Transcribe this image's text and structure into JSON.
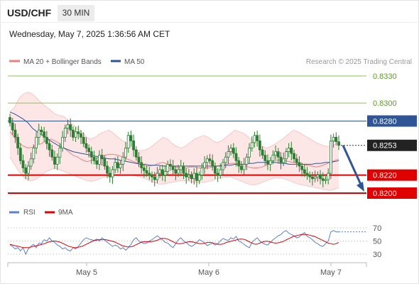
{
  "header": {
    "pair": "USD/CHF",
    "timeframe": "30 MIN",
    "datetime": "Wednesday, May 7, 2025 1:36:56 AM CET"
  },
  "legend": {
    "ma20_bb": "MA 20 + Bollinger Bands",
    "ma50": "MA 50",
    "rsi": "RSI",
    "ma9": "9MA"
  },
  "copyright": "Research © 2025 Trading Central",
  "colors": {
    "candle": "#2e7d32",
    "ma20": "#f08080",
    "ma50": "#2f5597",
    "band_fill": "#fde6e6",
    "green_level": "#8bc34a",
    "blue_level": "#2f5597",
    "red_level": "#e00000",
    "arrow": "#2f5597",
    "rsi": "#5b7fd6",
    "rsi_ma9": "#e00000"
  },
  "chart_data": [
    {
      "type": "candlestick",
      "title": "USD/CHF 30 MIN",
      "x_ticks": [
        "May 5",
        "May 6",
        "May 7"
      ],
      "ylim": [
        0.819,
        0.834
      ],
      "levels": [
        {
          "value": 0.833,
          "label": "0.8330",
          "kind": "resistance"
        },
        {
          "value": 0.83,
          "label": "0.8300",
          "kind": "resistance"
        },
        {
          "value": 0.828,
          "label": "0.8280",
          "kind": "pivot"
        },
        {
          "value": 0.8253,
          "label": "0.8253",
          "kind": "last_price"
        },
        {
          "value": 0.822,
          "label": "0.8220",
          "kind": "support"
        },
        {
          "value": 0.82,
          "label": "0.8200",
          "kind": "support"
        }
      ],
      "candles_close": [
        0.8278,
        0.827,
        0.8262,
        0.825,
        0.8236,
        0.8228,
        0.8222,
        0.823,
        0.8238,
        0.825,
        0.8262,
        0.827,
        0.8268,
        0.8262,
        0.8255,
        0.8248,
        0.824,
        0.8232,
        0.824,
        0.825,
        0.8262,
        0.8272,
        0.8276,
        0.827,
        0.8262,
        0.8268,
        0.8266,
        0.8262,
        0.8255,
        0.825,
        0.8246,
        0.824,
        0.8236,
        0.8232,
        0.8242,
        0.8238,
        0.823,
        0.8222,
        0.8218,
        0.8226,
        0.8234,
        0.8228,
        0.8232,
        0.824,
        0.825,
        0.8264,
        0.8258,
        0.8248,
        0.824,
        0.8234,
        0.8228,
        0.8225,
        0.8222,
        0.822,
        0.8218,
        0.8215,
        0.8222,
        0.8226,
        0.822,
        0.8224,
        0.8232,
        0.823,
        0.8226,
        0.8222,
        0.8226,
        0.823,
        0.8222,
        0.8218,
        0.822,
        0.8216,
        0.8222,
        0.8214,
        0.822,
        0.8228,
        0.8234,
        0.8238,
        0.8236,
        0.823,
        0.8222,
        0.822,
        0.8226,
        0.8234,
        0.824,
        0.8246,
        0.825,
        0.8244,
        0.8236,
        0.823,
        0.8226,
        0.8232,
        0.824,
        0.825,
        0.8256,
        0.8264,
        0.8258,
        0.8248,
        0.8242,
        0.8236,
        0.8232,
        0.8236,
        0.8242,
        0.8246,
        0.824,
        0.8234,
        0.8238,
        0.8246,
        0.825,
        0.8244,
        0.8238,
        0.8234,
        0.823,
        0.8226,
        0.8222,
        0.822,
        0.8218,
        0.8216,
        0.8218,
        0.822,
        0.8216,
        0.8214,
        0.8215,
        0.8222,
        0.8258,
        0.8262,
        0.8257,
        0.8253
      ],
      "ma20": [
        0.8268,
        0.8262,
        0.8256,
        0.8252,
        0.825,
        0.8251,
        0.8253,
        0.8255,
        0.8258,
        0.826,
        0.8258,
        0.8255,
        0.825,
        0.8246,
        0.8242,
        0.824,
        0.8237,
        0.8235,
        0.8236,
        0.8238,
        0.824,
        0.8242,
        0.8243,
        0.8243,
        0.8242,
        0.824,
        0.8238,
        0.8236,
        0.8234,
        0.8232,
        0.823,
        0.823,
        0.8231,
        0.8233,
        0.8234,
        0.8232,
        0.823,
        0.8229,
        0.8228,
        0.8228,
        0.8229,
        0.8229,
        0.8228,
        0.8228,
        0.8228,
        0.8229,
        0.823,
        0.8231,
        0.8232,
        0.8233,
        0.8233,
        0.8232,
        0.8231,
        0.8229,
        0.8228,
        0.8228,
        0.8229,
        0.8231,
        0.8234,
        0.8236,
        0.8237,
        0.8236,
        0.8235,
        0.8234,
        0.8233,
        0.8232,
        0.8231,
        0.823,
        0.8229,
        0.823,
        0.8232,
        0.8234,
        0.8236,
        0.8238
      ],
      "ma50": [
        0.829,
        0.8288,
        0.8285,
        0.8282,
        0.8278,
        0.8272,
        0.8268,
        0.8265,
        0.8262,
        0.8258,
        0.8255,
        0.8252,
        0.825,
        0.8248,
        0.8246,
        0.8245,
        0.8244,
        0.8243,
        0.8242,
        0.8241,
        0.824,
        0.8239,
        0.8238,
        0.8238,
        0.8237,
        0.8236,
        0.8235,
        0.8234,
        0.8233,
        0.8232,
        0.8232,
        0.8231,
        0.8231,
        0.8231,
        0.823,
        0.823,
        0.823,
        0.823,
        0.823,
        0.823,
        0.823,
        0.823,
        0.823,
        0.823,
        0.823,
        0.823,
        0.823,
        0.823,
        0.8231,
        0.8231,
        0.8232,
        0.8232,
        0.8232,
        0.8233,
        0.8233,
        0.8234,
        0.8234,
        0.8234,
        0.8234,
        0.8234,
        0.8233,
        0.8233,
        0.8232,
        0.8232,
        0.8232,
        0.8232,
        0.8232,
        0.8232,
        0.8233,
        0.8233,
        0.8234,
        0.8234,
        0.8235,
        0.8236
      ],
      "bb_upper": [
        0.829,
        0.8295,
        0.8305,
        0.831,
        0.8312,
        0.831,
        0.8305,
        0.83,
        0.8296,
        0.8292,
        0.8288,
        0.8286,
        0.8285,
        0.828,
        0.8276,
        0.8272,
        0.8268,
        0.8262,
        0.826,
        0.8262,
        0.8266,
        0.8268,
        0.827,
        0.8266,
        0.8262,
        0.8258,
        0.8255,
        0.825,
        0.8248,
        0.8247,
        0.8248,
        0.825,
        0.8254,
        0.8258,
        0.8262,
        0.826,
        0.8255,
        0.8252,
        0.825,
        0.8252,
        0.8256,
        0.826,
        0.8262,
        0.8264,
        0.8262,
        0.8258,
        0.8256,
        0.8258,
        0.8262,
        0.8266,
        0.827,
        0.8268,
        0.8266,
        0.8262,
        0.8258,
        0.8255,
        0.8252,
        0.825,
        0.8252,
        0.8255,
        0.8258,
        0.8262,
        0.8266,
        0.827,
        0.8268,
        0.8265,
        0.8262,
        0.8259,
        0.8256,
        0.8254,
        0.8252,
        0.8252,
        0.8254,
        0.8256
      ],
      "bb_lower": [
        0.824,
        0.8232,
        0.8224,
        0.8218,
        0.8214,
        0.8214,
        0.8216,
        0.822,
        0.8224,
        0.8226,
        0.8228,
        0.8226,
        0.8224,
        0.8222,
        0.822,
        0.8218,
        0.8216,
        0.8214,
        0.8213,
        0.8214,
        0.8216,
        0.8218,
        0.8219,
        0.822,
        0.8221,
        0.822,
        0.822,
        0.822,
        0.8219,
        0.8218,
        0.8216,
        0.8214,
        0.8212,
        0.821,
        0.821,
        0.8211,
        0.8212,
        0.8213,
        0.8214,
        0.8214,
        0.8213,
        0.8212,
        0.8212,
        0.8212,
        0.8213,
        0.8214,
        0.8216,
        0.8217,
        0.8218,
        0.8218,
        0.8216,
        0.8214,
        0.8212,
        0.821,
        0.8209,
        0.821,
        0.8212,
        0.8214,
        0.8216,
        0.8217,
        0.8217,
        0.8216,
        0.8214,
        0.8212,
        0.821,
        0.8209,
        0.8208,
        0.8207,
        0.8206,
        0.8205,
        0.8204,
        0.8203,
        0.8204,
        0.8206
      ],
      "forecast_arrow": {
        "from": 0.8253,
        "to": 0.82
      }
    },
    {
      "type": "line",
      "series": [
        {
          "name": "RSI"
        },
        {
          "name": "9MA"
        }
      ],
      "y_ticks": [
        70,
        50,
        30
      ],
      "ylim": [
        20,
        80
      ],
      "rsi": [
        44,
        42,
        38,
        40,
        35,
        40,
        30,
        38,
        42,
        45,
        40,
        47,
        46,
        52,
        50,
        55,
        50,
        48,
        44,
        42,
        38,
        40,
        36,
        35,
        40,
        38,
        42,
        47,
        52,
        55,
        53,
        52,
        51,
        53,
        50,
        55,
        52,
        48,
        45,
        42,
        44,
        42,
        38,
        40,
        36,
        40,
        45,
        52,
        55,
        50,
        48,
        46,
        47,
        50,
        52,
        55,
        58,
        55,
        52,
        48,
        47,
        43,
        40,
        46,
        52,
        55,
        50,
        48,
        44,
        42,
        44,
        48,
        52,
        50,
        47,
        43,
        45,
        47,
        44,
        46,
        50,
        54,
        52,
        51,
        55,
        53,
        57,
        50,
        48,
        45,
        42,
        40,
        48,
        52,
        55,
        50,
        47,
        45,
        44,
        48,
        52,
        55,
        58,
        60,
        64,
        66,
        62,
        60,
        58,
        55,
        56,
        60,
        63,
        57,
        55,
        52,
        48,
        46,
        43,
        42,
        46,
        50,
        64,
        66,
        64,
        64
      ],
      "ma9": [
        45,
        44,
        43,
        42,
        41,
        40,
        40,
        40,
        41,
        42,
        43,
        44,
        45,
        46,
        48,
        49,
        50,
        50,
        49,
        48,
        46,
        44,
        42,
        41,
        40,
        40,
        41,
        42,
        44,
        46,
        48,
        50,
        51,
        52,
        52,
        52,
        52,
        51,
        50,
        49,
        47,
        45,
        43,
        42,
        41,
        41,
        42,
        44,
        46,
        48,
        49,
        49,
        49,
        49,
        50,
        51,
        53,
        54,
        54,
        53,
        51,
        49,
        47,
        46,
        46,
        47,
        48,
        49,
        49,
        48,
        47,
        46,
        46,
        47,
        48,
        48,
        47,
        46,
        45,
        45,
        46,
        48,
        49,
        50,
        51,
        52,
        53,
        53,
        52,
        50,
        48,
        46,
        45,
        46,
        48,
        49,
        50,
        49,
        48,
        47,
        47,
        48,
        49,
        51,
        53,
        55,
        57,
        58,
        59,
        60,
        60,
        60,
        59,
        58,
        57,
        55,
        53,
        51,
        49,
        47,
        46,
        45,
        46,
        48
      ]
    }
  ]
}
